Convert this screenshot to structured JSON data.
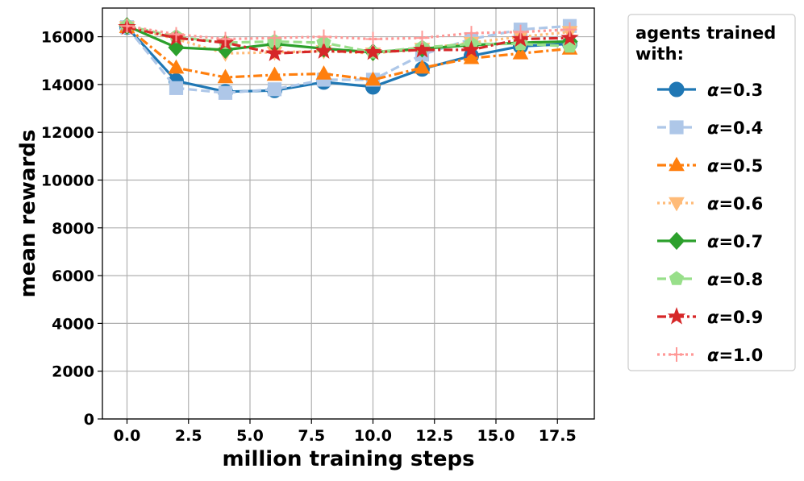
{
  "chart_data": {
    "type": "line",
    "xlabel": "million training steps",
    "ylabel": "mean rewards",
    "xlim": [
      -1,
      19
    ],
    "ylim": [
      0,
      17200
    ],
    "xticks": [
      0.0,
      2.5,
      5.0,
      7.5,
      10.0,
      12.5,
      15.0,
      17.5
    ],
    "xtick_labels": [
      "0.0",
      "2.5",
      "5.0",
      "7.5",
      "10.0",
      "12.5",
      "15.0",
      "17.5"
    ],
    "yticks": [
      0,
      2000,
      4000,
      6000,
      8000,
      10000,
      12000,
      14000,
      16000
    ],
    "ytick_labels": [
      "0",
      "2000",
      "4000",
      "6000",
      "8000",
      "10000",
      "12000",
      "14000",
      "16000"
    ],
    "grid": true,
    "legend_title": "agents trained with:",
    "legend_title_lines": [
      "agents trained",
      "with:"
    ],
    "legend_position": "outside-right",
    "x": [
      0,
      2,
      4,
      6,
      8,
      10,
      12,
      14,
      16,
      18
    ],
    "series": [
      {
        "name": "α=0.3",
        "label_prefix": "α",
        "label_value": "=0.3",
        "color": "#1f77b4",
        "marker": "circle",
        "dash": "solid",
        "values": [
          16400,
          14150,
          13700,
          13750,
          14100,
          13900,
          14650,
          15200,
          15600,
          15700
        ]
      },
      {
        "name": "α=0.4",
        "label_prefix": "α",
        "label_value": "=0.4",
        "color": "#aec7e8",
        "marker": "square",
        "dash": "dashed",
        "values": [
          16400,
          13850,
          13650,
          13800,
          14200,
          14200,
          15250,
          15900,
          16300,
          16450
        ]
      },
      {
        "name": "α=0.5",
        "label_prefix": "α",
        "label_value": "=0.5",
        "color": "#ff7f0e",
        "marker": "triangle-up",
        "dash": "dashdot",
        "values": [
          16400,
          14700,
          14300,
          14400,
          14450,
          14200,
          14700,
          15100,
          15300,
          15500
        ]
      },
      {
        "name": "α=0.6",
        "label_prefix": "α",
        "label_value": "=0.6",
        "color": "#ffbb78",
        "marker": "triangle-down",
        "dash": "dotted",
        "values": [
          16400,
          15900,
          15300,
          15350,
          15400,
          15300,
          15500,
          15750,
          16000,
          16200
        ]
      },
      {
        "name": "α=0.7",
        "label_prefix": "α",
        "label_value": "=0.7",
        "color": "#2ca02c",
        "marker": "diamond",
        "dash": "solid",
        "values": [
          16450,
          15550,
          15450,
          15700,
          15500,
          15350,
          15500,
          15650,
          15750,
          15800
        ]
      },
      {
        "name": "α=0.8",
        "label_prefix": "α",
        "label_value": "=0.8",
        "color": "#98df8a",
        "marker": "pentagon",
        "dash": "dashed",
        "values": [
          16450,
          16000,
          15750,
          15800,
          15750,
          15350,
          15550,
          15700,
          15700,
          15600
        ]
      },
      {
        "name": "α=0.9",
        "label_prefix": "α",
        "label_value": "=0.9",
        "color": "#d62728",
        "marker": "star",
        "dash": "dashdot",
        "values": [
          16400,
          15950,
          15750,
          15300,
          15400,
          15350,
          15450,
          15450,
          15900,
          15950
        ]
      },
      {
        "name": "α=1.0",
        "label_prefix": "α",
        "label_value": "=1.0",
        "color": "#ff9896",
        "marker": "plus",
        "dash": "dotted",
        "values": [
          16450,
          16100,
          15900,
          15950,
          16000,
          15900,
          15950,
          16150,
          16200,
          16300
        ]
      }
    ]
  }
}
